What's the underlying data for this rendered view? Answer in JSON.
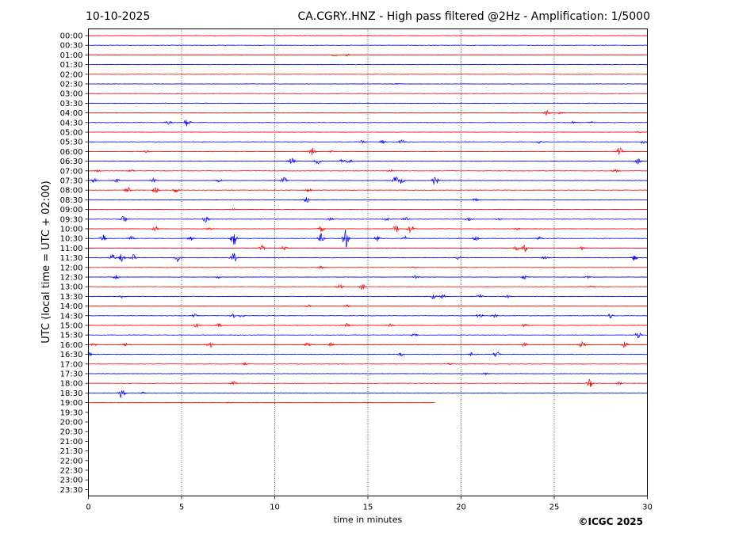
{
  "header": {
    "date": "10-10-2025",
    "title": "CA.CGRY..HNZ - High pass filtered @2Hz - Amplification: 1/5000"
  },
  "footer": {
    "copyright": "©ICGC 2025"
  },
  "colors": {
    "trace_a": "#ff0000",
    "trace_b": "#0000ff",
    "grid": "#000000",
    "axis": "#000000"
  },
  "chart_data": {
    "type": "line",
    "xlabel": "time in minutes",
    "ylabel": "UTC (local time = UTC + 02:00)",
    "xlim": [
      0,
      30
    ],
    "x_ticks": [
      0,
      5,
      10,
      15,
      20,
      25,
      30
    ],
    "x_tick_labels": [
      "0",
      "5",
      "10",
      "15",
      "20",
      "25",
      "30"
    ],
    "grid_vertical_minutes": [
      5,
      10,
      15,
      20,
      25
    ],
    "row_labels": [
      "00:00",
      "00:30",
      "01:00",
      "01:30",
      "02:00",
      "02:30",
      "03:00",
      "03:30",
      "04:00",
      "04:30",
      "05:00",
      "05:30",
      "06:00",
      "06:30",
      "07:00",
      "07:30",
      "08:00",
      "08:30",
      "09:00",
      "09:30",
      "10:00",
      "10:30",
      "11:00",
      "11:30",
      "12:00",
      "12:30",
      "13:00",
      "13:30",
      "14:00",
      "14:30",
      "15:00",
      "15:30",
      "16:00",
      "16:30",
      "17:00",
      "17:30",
      "18:00",
      "18:30",
      "19:00",
      "19:30",
      "20:00",
      "20:30",
      "21:00",
      "21:30",
      "22:00",
      "22:30",
      "23:00",
      "23:30"
    ],
    "row_colors": [
      "red",
      "blue",
      "red",
      "blue",
      "red",
      "blue",
      "red",
      "blue",
      "red",
      "blue",
      "red",
      "blue",
      "red",
      "blue",
      "red",
      "blue",
      "red",
      "blue",
      "red",
      "blue",
      "red",
      "blue",
      "red",
      "blue",
      "red",
      "blue",
      "red",
      "blue",
      "red",
      "blue",
      "red",
      "blue",
      "red",
      "blue",
      "red",
      "blue",
      "red",
      "blue",
      "red"
    ],
    "traces_minutes": [
      30,
      30,
      30,
      30,
      30,
      30,
      30,
      30,
      30,
      30,
      30,
      30,
      30,
      30,
      30,
      30,
      30,
      30,
      30,
      30,
      30,
      30,
      30,
      30,
      30,
      30,
      30,
      30,
      30,
      30,
      30,
      30,
      30,
      30,
      30,
      30,
      30,
      30,
      18.6
    ],
    "events": [
      {
        "row": 2,
        "minute": 13.2,
        "amp": 1.2
      },
      {
        "row": 2,
        "minute": 13.9,
        "amp": 1.0
      },
      {
        "row": 5,
        "minute": 16.5,
        "amp": 0.6
      },
      {
        "row": 8,
        "minute": 24.6,
        "amp": 3.5
      },
      {
        "row": 8,
        "minute": 25.3,
        "amp": 1.2
      },
      {
        "row": 9,
        "minute": 4.3,
        "amp": 2.0
      },
      {
        "row": 9,
        "minute": 5.3,
        "amp": 6.0
      },
      {
        "row": 9,
        "minute": 26.0,
        "amp": 1.5
      },
      {
        "row": 9,
        "minute": 27.0,
        "amp": 1.5
      },
      {
        "row": 10,
        "minute": 29.5,
        "amp": 1.2
      },
      {
        "row": 11,
        "minute": 14.7,
        "amp": 3.0
      },
      {
        "row": 11,
        "minute": 15.8,
        "amp": 2.0
      },
      {
        "row": 11,
        "minute": 16.8,
        "amp": 2.5
      },
      {
        "row": 11,
        "minute": 24.2,
        "amp": 2.0
      },
      {
        "row": 11,
        "minute": 29.8,
        "amp": 2.0
      },
      {
        "row": 12,
        "minute": 3.1,
        "amp": 1.5
      },
      {
        "row": 12,
        "minute": 12.0,
        "amp": 5.0
      },
      {
        "row": 12,
        "minute": 13.0,
        "amp": 1.2
      },
      {
        "row": 12,
        "minute": 28.5,
        "amp": 5.0
      },
      {
        "row": 13,
        "minute": 10.9,
        "amp": 5.0
      },
      {
        "row": 13,
        "minute": 12.3,
        "amp": 5.0
      },
      {
        "row": 13,
        "minute": 13.6,
        "amp": 2.5
      },
      {
        "row": 13,
        "minute": 14.0,
        "amp": 2.0
      },
      {
        "row": 13,
        "minute": 29.5,
        "amp": 4.0
      },
      {
        "row": 14,
        "minute": 0.5,
        "amp": 1.2
      },
      {
        "row": 14,
        "minute": 2.3,
        "amp": 1.5
      },
      {
        "row": 14,
        "minute": 16.2,
        "amp": 1.8
      },
      {
        "row": 14,
        "minute": 28.3,
        "amp": 2.0
      },
      {
        "row": 15,
        "minute": 0.3,
        "amp": 3.0
      },
      {
        "row": 15,
        "minute": 1.5,
        "amp": 2.0
      },
      {
        "row": 15,
        "minute": 3.5,
        "amp": 2.5
      },
      {
        "row": 15,
        "minute": 7.0,
        "amp": 2.0
      },
      {
        "row": 15,
        "minute": 10.5,
        "amp": 5.0
      },
      {
        "row": 15,
        "minute": 16.5,
        "amp": 6.0
      },
      {
        "row": 15,
        "minute": 16.8,
        "amp": 4.0
      },
      {
        "row": 15,
        "minute": 18.6,
        "amp": 7.0
      },
      {
        "row": 16,
        "minute": 2.1,
        "amp": 4.0
      },
      {
        "row": 16,
        "minute": 3.6,
        "amp": 3.5
      },
      {
        "row": 16,
        "minute": 4.7,
        "amp": 3.0
      },
      {
        "row": 16,
        "minute": 11.8,
        "amp": 2.0
      },
      {
        "row": 17,
        "minute": 11.7,
        "amp": 3.5
      },
      {
        "row": 17,
        "minute": 20.8,
        "amp": 2.0
      },
      {
        "row": 18,
        "minute": 7.8,
        "amp": 1.0
      },
      {
        "row": 19,
        "minute": 1.9,
        "amp": 5.0
      },
      {
        "row": 19,
        "minute": 6.3,
        "amp": 3.5
      },
      {
        "row": 19,
        "minute": 13.0,
        "amp": 1.5
      },
      {
        "row": 19,
        "minute": 16.0,
        "amp": 2.0
      },
      {
        "row": 19,
        "minute": 17.0,
        "amp": 2.5
      },
      {
        "row": 19,
        "minute": 20.4,
        "amp": 2.0
      },
      {
        "row": 19,
        "minute": 22.0,
        "amp": 1.5
      },
      {
        "row": 20,
        "minute": 3.6,
        "amp": 3.0
      },
      {
        "row": 20,
        "minute": 6.5,
        "amp": 1.5
      },
      {
        "row": 20,
        "minute": 12.5,
        "amp": 3.5
      },
      {
        "row": 20,
        "minute": 16.5,
        "amp": 5.0
      },
      {
        "row": 20,
        "minute": 17.3,
        "amp": 5.0
      },
      {
        "row": 20,
        "minute": 23.0,
        "amp": 1.5
      },
      {
        "row": 21,
        "minute": 0.8,
        "amp": 5.0
      },
      {
        "row": 21,
        "minute": 2.3,
        "amp": 3.0
      },
      {
        "row": 21,
        "minute": 5.5,
        "amp": 2.5
      },
      {
        "row": 21,
        "minute": 7.8,
        "amp": 9.0
      },
      {
        "row": 21,
        "minute": 12.5,
        "amp": 6.0
      },
      {
        "row": 21,
        "minute": 13.8,
        "amp": 12.0
      },
      {
        "row": 21,
        "minute": 15.5,
        "amp": 4.0
      },
      {
        "row": 21,
        "minute": 17.0,
        "amp": 2.5
      },
      {
        "row": 21,
        "minute": 20.8,
        "amp": 3.5
      },
      {
        "row": 21,
        "minute": 24.2,
        "amp": 2.0
      },
      {
        "row": 22,
        "minute": 9.3,
        "amp": 4.0
      },
      {
        "row": 22,
        "minute": 10.5,
        "amp": 3.0
      },
      {
        "row": 22,
        "minute": 23.4,
        "amp": 5.0
      },
      {
        "row": 22,
        "minute": 23.0,
        "amp": 3.0
      },
      {
        "row": 22,
        "minute": 26.5,
        "amp": 2.5
      },
      {
        "row": 23,
        "minute": 1.3,
        "amp": 4.0
      },
      {
        "row": 23,
        "minute": 1.8,
        "amp": 5.0
      },
      {
        "row": 23,
        "minute": 2.4,
        "amp": 4.0
      },
      {
        "row": 23,
        "minute": 4.8,
        "amp": 5.0
      },
      {
        "row": 23,
        "minute": 7.8,
        "amp": 6.0
      },
      {
        "row": 23,
        "minute": 19.9,
        "amp": 2.5
      },
      {
        "row": 23,
        "minute": 24.5,
        "amp": 2.0
      },
      {
        "row": 23,
        "minute": 29.3,
        "amp": 3.5
      },
      {
        "row": 24,
        "minute": 12.5,
        "amp": 1.5
      },
      {
        "row": 24,
        "minute": 17.5,
        "amp": 1.0
      },
      {
        "row": 25,
        "minute": 1.5,
        "amp": 3.0
      },
      {
        "row": 25,
        "minute": 7.0,
        "amp": 1.5
      },
      {
        "row": 25,
        "minute": 17.6,
        "amp": 3.0
      },
      {
        "row": 25,
        "minute": 23.4,
        "amp": 3.0
      },
      {
        "row": 25,
        "minute": 26.8,
        "amp": 1.5
      },
      {
        "row": 26,
        "minute": 13.5,
        "amp": 3.0
      },
      {
        "row": 26,
        "minute": 14.7,
        "amp": 3.5
      },
      {
        "row": 26,
        "minute": 27.0,
        "amp": 1.0
      },
      {
        "row": 27,
        "minute": 1.8,
        "amp": 1.5
      },
      {
        "row": 27,
        "minute": 18.5,
        "amp": 3.0
      },
      {
        "row": 27,
        "minute": 19.0,
        "amp": 2.5
      },
      {
        "row": 27,
        "minute": 21.0,
        "amp": 3.0
      },
      {
        "row": 27,
        "minute": 22.5,
        "amp": 1.5
      },
      {
        "row": 28,
        "minute": 11.8,
        "amp": 1.2
      },
      {
        "row": 28,
        "minute": 13.9,
        "amp": 1.2
      },
      {
        "row": 29,
        "minute": 5.7,
        "amp": 2.0
      },
      {
        "row": 29,
        "minute": 7.8,
        "amp": 2.5
      },
      {
        "row": 29,
        "minute": 8.2,
        "amp": 2.0
      },
      {
        "row": 29,
        "minute": 21.0,
        "amp": 3.0
      },
      {
        "row": 29,
        "minute": 21.8,
        "amp": 2.5
      },
      {
        "row": 29,
        "minute": 28.0,
        "amp": 3.0
      },
      {
        "row": 30,
        "minute": 5.8,
        "amp": 2.5
      },
      {
        "row": 30,
        "minute": 7.0,
        "amp": 2.0
      },
      {
        "row": 30,
        "minute": 13.9,
        "amp": 3.0
      },
      {
        "row": 30,
        "minute": 16.2,
        "amp": 2.0
      },
      {
        "row": 30,
        "minute": 23.4,
        "amp": 2.0
      },
      {
        "row": 31,
        "minute": 17.5,
        "amp": 1.5
      },
      {
        "row": 31,
        "minute": 29.5,
        "amp": 4.0
      },
      {
        "row": 32,
        "minute": 0.3,
        "amp": 2.0
      },
      {
        "row": 32,
        "minute": 2.0,
        "amp": 2.0
      },
      {
        "row": 32,
        "minute": 6.5,
        "amp": 4.0
      },
      {
        "row": 32,
        "minute": 11.8,
        "amp": 4.0
      },
      {
        "row": 32,
        "minute": 13.0,
        "amp": 2.0
      },
      {
        "row": 32,
        "minute": 23.4,
        "amp": 2.5
      },
      {
        "row": 32,
        "minute": 26.5,
        "amp": 5.0
      },
      {
        "row": 32,
        "minute": 28.8,
        "amp": 4.0
      },
      {
        "row": 33,
        "minute": 0.0,
        "amp": 3.5
      },
      {
        "row": 33,
        "minute": 16.8,
        "amp": 2.0
      },
      {
        "row": 33,
        "minute": 20.6,
        "amp": 2.5
      },
      {
        "row": 33,
        "minute": 21.9,
        "amp": 4.0
      },
      {
        "row": 34,
        "minute": 8.4,
        "amp": 1.2
      },
      {
        "row": 34,
        "minute": 19.4,
        "amp": 1.0
      },
      {
        "row": 35,
        "minute": 21.3,
        "amp": 1.2
      },
      {
        "row": 36,
        "minute": 7.8,
        "amp": 3.0
      },
      {
        "row": 36,
        "minute": 26.9,
        "amp": 5.0
      },
      {
        "row": 36,
        "minute": 28.5,
        "amp": 1.5
      },
      {
        "row": 37,
        "minute": 1.8,
        "amp": 7.0
      },
      {
        "row": 37,
        "minute": 2.9,
        "amp": 1.0
      },
      {
        "row": 38,
        "minute": 7.5,
        "amp": 0.8
      }
    ]
  }
}
